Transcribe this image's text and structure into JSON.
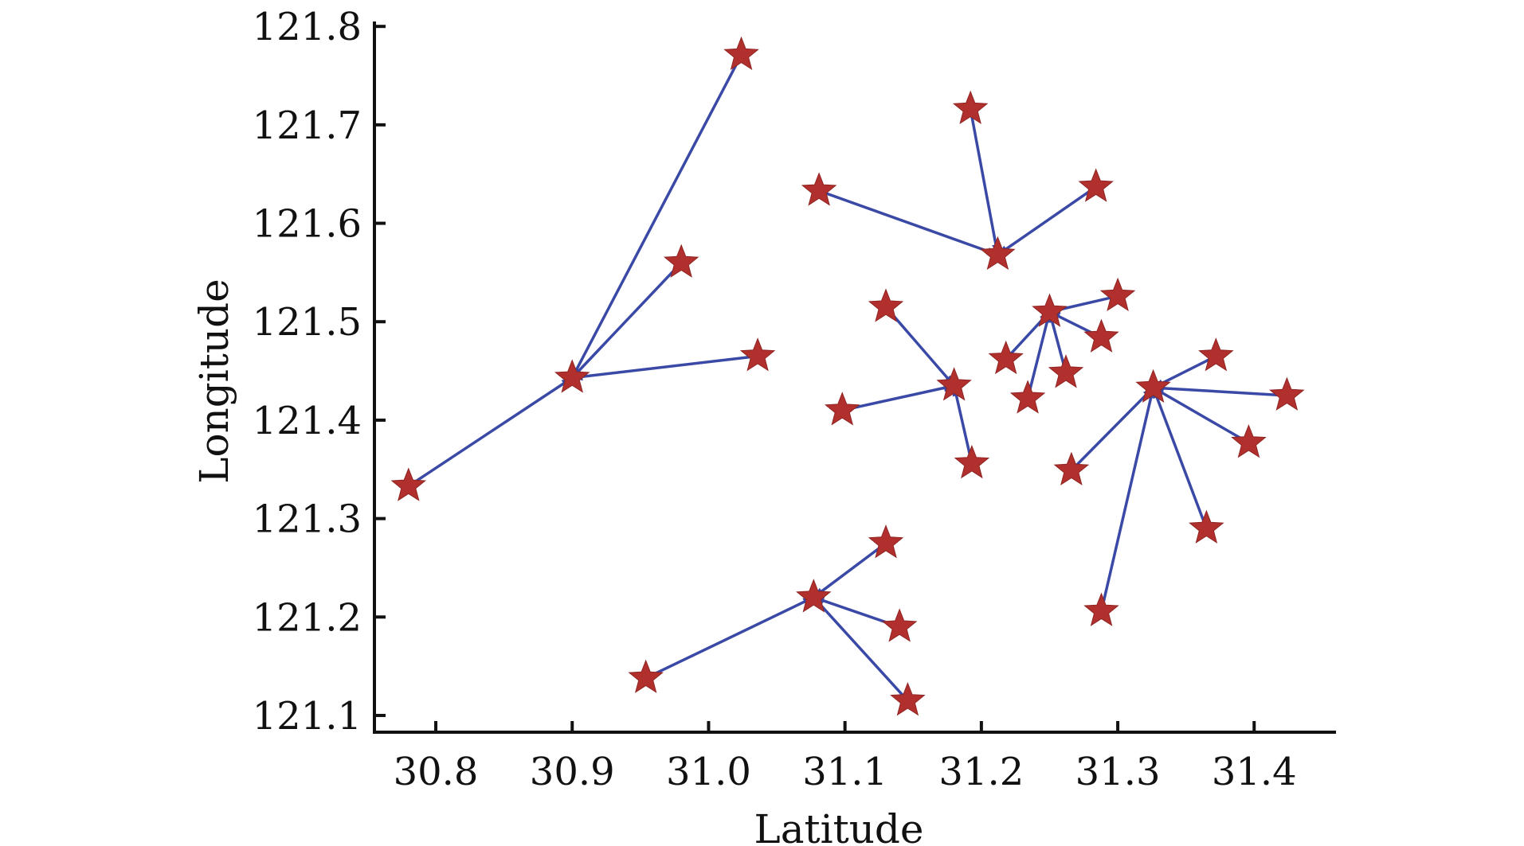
{
  "chart_data": {
    "type": "scatter",
    "xlabel": "Latitude",
    "ylabel": "Longitude",
    "xlim": [
      30.755,
      31.46
    ],
    "ylim": [
      121.083,
      121.805
    ],
    "xticks": [
      30.8,
      30.9,
      31.0,
      31.1,
      31.2,
      31.3,
      31.4
    ],
    "xtick_labels": [
      "30.8",
      "30.9",
      "31.0",
      "31.1",
      "31.2",
      "31.3",
      "31.4"
    ],
    "yticks": [
      121.1,
      121.2,
      121.3,
      121.4,
      121.5,
      121.6,
      121.7,
      121.8
    ],
    "ytick_labels": [
      "121.1",
      "121.2",
      "121.3",
      "121.4",
      "121.5",
      "121.6",
      "121.7",
      "121.8"
    ],
    "grid": false,
    "colors": {
      "marker": "#b1302e",
      "link": "#3a49a6",
      "axis": "#111111"
    },
    "clusters": [
      {
        "center": [
          30.9,
          121.443
        ],
        "points": [
          [
            31.024,
            121.771
          ],
          [
            30.98,
            121.56
          ],
          [
            31.036,
            121.465
          ],
          [
            30.78,
            121.333
          ],
          [
            30.9,
            121.443
          ]
        ]
      },
      {
        "center": [
          31.212,
          121.568
        ],
        "points": [
          [
            31.192,
            121.716
          ],
          [
            31.081,
            121.633
          ],
          [
            31.284,
            121.637
          ],
          [
            31.212,
            121.568
          ]
        ]
      },
      {
        "center": [
          31.18,
          121.435
        ],
        "points": [
          [
            31.13,
            121.515
          ],
          [
            31.098,
            121.41
          ],
          [
            31.193,
            121.356
          ],
          [
            31.18,
            121.435
          ]
        ]
      },
      {
        "center": [
          31.25,
          121.51
        ],
        "points": [
          [
            31.3,
            121.526
          ],
          [
            31.218,
            121.462
          ],
          [
            31.288,
            121.484
          ],
          [
            31.262,
            121.448
          ],
          [
            31.234,
            121.422
          ],
          [
            31.25,
            121.51
          ]
        ]
      },
      {
        "center": [
          31.326,
          121.433
        ],
        "points": [
          [
            31.372,
            121.465
          ],
          [
            31.424,
            121.425
          ],
          [
            31.396,
            121.377
          ],
          [
            31.365,
            121.29
          ],
          [
            31.266,
            121.349
          ],
          [
            31.288,
            121.206
          ],
          [
            31.326,
            121.433
          ]
        ]
      },
      {
        "center": [
          31.077,
          121.22
        ],
        "points": [
          [
            31.13,
            121.275
          ],
          [
            31.14,
            121.19
          ],
          [
            31.146,
            121.115
          ],
          [
            30.954,
            121.138
          ],
          [
            31.077,
            121.22
          ]
        ]
      }
    ]
  }
}
